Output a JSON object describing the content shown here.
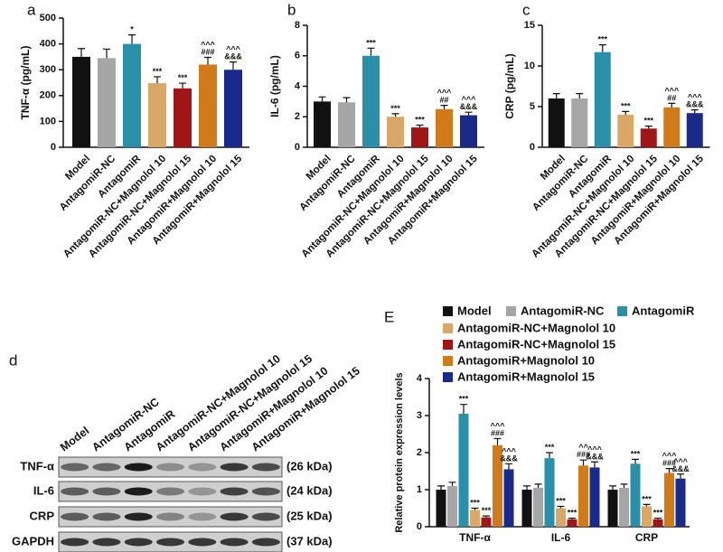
{
  "chart_data": [
    {
      "type": "bar",
      "panel": "a",
      "ylabel": "TNF-α (pg/mL)",
      "categories": [
        "Model",
        "AntagomiR-NC",
        "AntagomiR",
        "AntagomiR-NC+Magnolol 10",
        "AntagomiR-NC+Magnolol 15",
        "AntagomiR+Magnolol 10",
        "AntagomiR+Magnolol 15"
      ],
      "values": [
        350,
        345,
        400,
        248,
        228,
        320,
        300
      ],
      "errors": [
        32,
        35,
        35,
        25,
        20,
        28,
        30
      ],
      "colors": [
        "#111111",
        "#a6a6a6",
        "#2a8fa8",
        "#d9a866",
        "#a01515",
        "#d07a1a",
        "#1a2a8a"
      ],
      "annotations": [
        [],
        [],
        [
          "*"
        ],
        [
          "***"
        ],
        [
          "***"
        ],
        [
          "^^^",
          "###"
        ],
        [
          "^^^",
          "&&&"
        ]
      ],
      "ylim": [
        0,
        500
      ],
      "yticks": [
        0,
        100,
        200,
        300,
        400,
        500
      ]
    },
    {
      "type": "bar",
      "panel": "b",
      "ylabel": "IL-6 (pg/mL)",
      "categories": [
        "Model",
        "AntagomiR-NC",
        "AntagomiR",
        "AntagomiR-NC+Magnolol 10",
        "AntagomiR-NC+Magnolol 15",
        "AntagomiR+Magnolol 10",
        "AntagomiR+Magnolol 15"
      ],
      "values": [
        3.0,
        2.95,
        6.0,
        2.0,
        1.3,
        2.5,
        2.1
      ],
      "errors": [
        0.3,
        0.3,
        0.5,
        0.2,
        0.15,
        0.25,
        0.2
      ],
      "colors": [
        "#111111",
        "#a6a6a6",
        "#2a8fa8",
        "#d9a866",
        "#a01515",
        "#d07a1a",
        "#1a2a8a"
      ],
      "annotations": [
        [],
        [],
        [
          "***"
        ],
        [
          "***"
        ],
        [
          "***"
        ],
        [
          "^^^",
          "##"
        ],
        [
          "^^^",
          "&&&"
        ]
      ],
      "ylim": [
        0,
        8
      ],
      "yticks": [
        0,
        2,
        4,
        6,
        8
      ]
    },
    {
      "type": "bar",
      "panel": "c",
      "ylabel": "CRP (pg/mL)",
      "categories": [
        "Model",
        "AntagomiR-NC",
        "AntagomiR",
        "AntagomiR-NC+Magnolol 10",
        "AntagomiR-NC+Magnolol 15",
        "AntagomiR+Magnolol 10",
        "AntagomiR+Magnolol 15"
      ],
      "values": [
        6.0,
        6.0,
        11.7,
        4.0,
        2.3,
        4.9,
        4.2
      ],
      "errors": [
        0.6,
        0.6,
        0.9,
        0.4,
        0.3,
        0.5,
        0.4
      ],
      "colors": [
        "#111111",
        "#a6a6a6",
        "#2a8fa8",
        "#d9a866",
        "#a01515",
        "#d07a1a",
        "#1a2a8a"
      ],
      "annotations": [
        [],
        [],
        [
          "***"
        ],
        [
          "***"
        ],
        [
          "***"
        ],
        [
          "^^^",
          "##"
        ],
        [
          "^^^",
          "&&&"
        ]
      ],
      "ylim": [
        0,
        15
      ],
      "yticks": [
        0,
        5,
        10,
        15
      ]
    },
    {
      "type": "grouped_bar",
      "panel": "E",
      "ylabel": "Relative protein expression levels",
      "categories": [
        "TNF-α",
        "IL-6",
        "CRP"
      ],
      "series": [
        {
          "name": "Model",
          "color": "#111111",
          "values": [
            1.0,
            1.0,
            1.0
          ],
          "errors": [
            0.1,
            0.1,
            0.1
          ],
          "annotations": [
            [],
            [],
            []
          ]
        },
        {
          "name": "AntagomiR-NC",
          "color": "#a6a6a6",
          "values": [
            1.1,
            1.05,
            1.05
          ],
          "errors": [
            0.1,
            0.1,
            0.1
          ],
          "annotations": [
            [],
            [],
            []
          ]
        },
        {
          "name": "AntagomiR",
          "color": "#2a8fa8",
          "values": [
            3.05,
            1.85,
            1.7
          ],
          "errors": [
            0.25,
            0.15,
            0.12
          ],
          "annotations": [
            [
              "***"
            ],
            [
              "***"
            ],
            [
              "***"
            ]
          ]
        },
        {
          "name": "AntagomiR-NC+Magnolol 10",
          "color": "#d9a866",
          "values": [
            0.45,
            0.5,
            0.55
          ],
          "errors": [
            0.05,
            0.05,
            0.05
          ],
          "annotations": [
            [
              "***"
            ],
            [
              "***"
            ],
            [
              "***"
            ]
          ]
        },
        {
          "name": "AntagomiR-NC+Magnolol 15",
          "color": "#a01515",
          "values": [
            0.25,
            0.2,
            0.2
          ],
          "errors": [
            0.04,
            0.03,
            0.03
          ],
          "annotations": [
            [
              "***"
            ],
            [
              "***"
            ],
            [
              "***"
            ]
          ]
        },
        {
          "name": "AntagomiR+Magnolol 10",
          "color": "#d07a1a",
          "values": [
            2.2,
            1.65,
            1.45
          ],
          "errors": [
            0.18,
            0.15,
            0.12
          ],
          "annotations": [
            [
              "^^^",
              "###"
            ],
            [
              "^^",
              "###"
            ],
            [
              "^^^",
              "###"
            ]
          ]
        },
        {
          "name": "AntagomiR+Magnolol 15",
          "color": "#1a2a8a",
          "values": [
            1.55,
            1.6,
            1.3
          ],
          "errors": [
            0.15,
            0.15,
            0.12
          ],
          "annotations": [
            [
              "^^^",
              "&&&"
            ],
            [
              "^^^",
              "&&&"
            ],
            [
              "^^^",
              "&&&"
            ]
          ]
        }
      ],
      "ylim": [
        0,
        4
      ],
      "yticks": [
        0,
        1,
        2,
        3,
        4
      ]
    }
  ],
  "blot": {
    "panel": "d",
    "lanes": [
      "Model",
      "AntagomiR-NC",
      "AntagomiR",
      "AntagomiR-NC+Magnolol 10",
      "AntagomiR-NC+Magnolol 15",
      "AntagomiR+Magnolol 10",
      "AntagomiR+Magnolol 15"
    ],
    "rows": [
      {
        "protein": "TNF-α",
        "size": "(26 kDa)"
      },
      {
        "protein": "IL-6",
        "size": "(24 kDa)"
      },
      {
        "protein": "CRP",
        "size": "(25 kDa)"
      },
      {
        "protein": "GAPDH",
        "size": "(37 kDa)"
      }
    ]
  }
}
